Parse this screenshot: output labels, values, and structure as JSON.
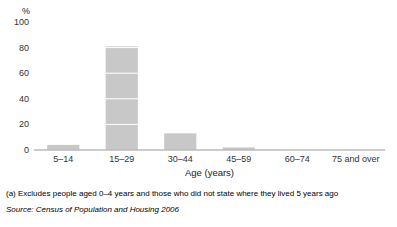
{
  "chart_data": {
    "type": "bar",
    "categories": [
      "5–14",
      "15–29",
      "30–44",
      "45–59",
      "60–74",
      "75 and over"
    ],
    "values": [
      4,
      81,
      13,
      2,
      0,
      0
    ],
    "color": "#c8c8c8",
    "ylabel": "%",
    "xlabel": "Age (years)",
    "ylim": [
      0,
      100
    ],
    "yticks": [
      0,
      20,
      40,
      60,
      80,
      100
    ],
    "grid": true,
    "annotations": [
      "(a) Excludes people aged 0–4 years and those who did not state where they lived 5 years ago",
      "Source: Census of Population and Housing 2006"
    ]
  }
}
